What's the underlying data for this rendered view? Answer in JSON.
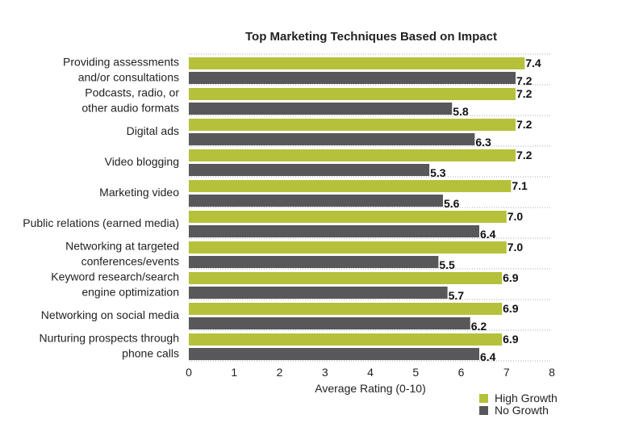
{
  "chart_data": {
    "type": "bar",
    "orientation": "horizontal",
    "title": "Top Marketing Techniques Based on Impact",
    "xlabel": "Average Rating (0-10)",
    "ylabel": "",
    "xlim": [
      0,
      8
    ],
    "xticks": [
      "0",
      "1",
      "2",
      "3",
      "4",
      "5",
      "6",
      "7",
      "8"
    ],
    "categories": [
      [
        "Providing assessments",
        "and/or consultations"
      ],
      [
        "Podcasts, radio, or",
        "other audio formats"
      ],
      [
        "Digital ads"
      ],
      [
        "Video blogging"
      ],
      [
        "Marketing video"
      ],
      [
        "Public relations (earned media)"
      ],
      [
        "Networking at targeted",
        "conferences/events"
      ],
      [
        "Keyword research/search",
        "engine optimization"
      ],
      [
        "Networking on social media"
      ],
      [
        "Nurturing prospects through",
        "phone calls"
      ]
    ],
    "series": [
      {
        "name": "High Growth",
        "color": "#b5c13a",
        "values": [
          7.4,
          7.2,
          7.2,
          7.2,
          7.1,
          7.0,
          7.0,
          6.9,
          6.9,
          6.9
        ]
      },
      {
        "name": "No Growth",
        "color": "#58585a",
        "values": [
          7.2,
          5.8,
          6.3,
          5.3,
          5.6,
          6.4,
          5.5,
          5.7,
          6.2,
          6.4
        ]
      }
    ],
    "legend_position": "bottom-right",
    "grid": "dotted separators between categories"
  }
}
